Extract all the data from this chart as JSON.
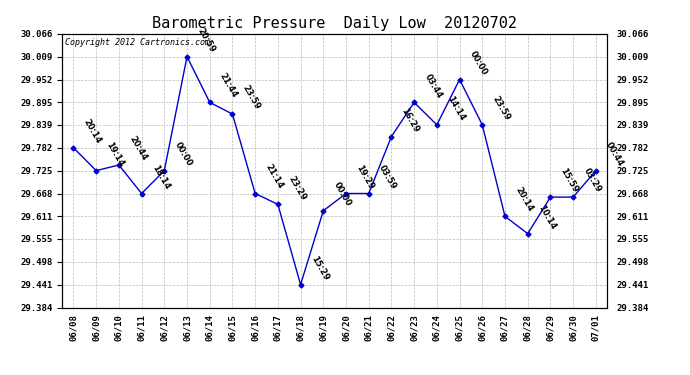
{
  "title": "Barometric Pressure  Daily Low  20120702",
  "copyright": "Copyright 2012 Cartronics.com",
  "x_labels": [
    "06/08",
    "06/09",
    "06/10",
    "06/11",
    "06/12",
    "06/13",
    "06/14",
    "06/15",
    "06/16",
    "06/17",
    "06/18",
    "06/19",
    "06/20",
    "06/21",
    "06/22",
    "06/23",
    "06/24",
    "06/25",
    "06/26",
    "06/27",
    "06/28",
    "06/29",
    "06/30",
    "07/01"
  ],
  "y_values": [
    29.782,
    29.725,
    29.739,
    29.668,
    29.725,
    30.009,
    29.895,
    29.866,
    29.668,
    29.641,
    29.441,
    29.625,
    29.668,
    29.668,
    29.81,
    29.895,
    29.839,
    29.952,
    29.839,
    29.611,
    29.568,
    29.659,
    29.659,
    29.725
  ],
  "point_labels": [
    "20:14",
    "19:14",
    "20:44",
    "18:14",
    "00:00",
    "20:59",
    "21:44",
    "23:59",
    "21:14",
    "23:29",
    "15:29",
    "00:00",
    "19:29",
    "03:59",
    "16:29",
    "03:44",
    "14:14",
    "00:00",
    "23:59",
    "20:14",
    "10:14",
    "15:59",
    "03:29",
    "00:44"
  ],
  "line_color": "#0000CC",
  "marker_color": "#0000CC",
  "background_color": "#ffffff",
  "plot_background": "#ffffff",
  "grid_color": "#aaaaaa",
  "ylim_min": 29.384,
  "ylim_max": 30.066,
  "ytick_values": [
    29.384,
    29.441,
    29.498,
    29.555,
    29.611,
    29.668,
    29.725,
    29.782,
    29.839,
    29.895,
    29.952,
    30.009,
    30.066
  ],
  "title_fontsize": 11,
  "label_fontsize": 6,
  "tick_fontsize": 6.5,
  "copyright_fontsize": 6
}
